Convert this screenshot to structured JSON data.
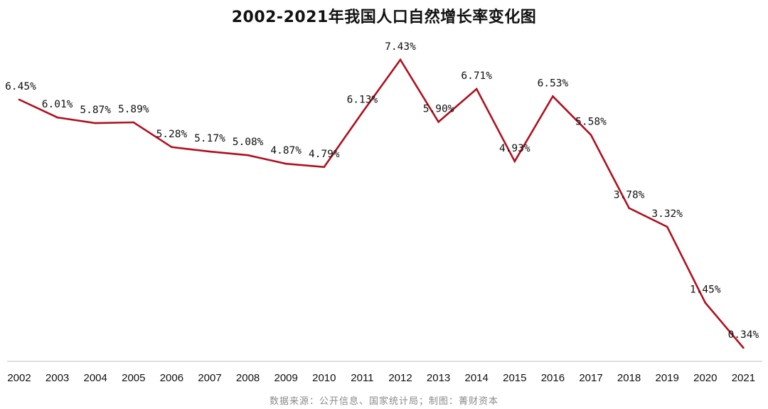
{
  "title": "2002-2021年我国人口自然增长率变化图",
  "source": "数据来源：公开信息、国家统计局；制图：菁财资本",
  "colors": {
    "line": "#b0101e",
    "axis": "#bfbfbf",
    "text": "#111111",
    "source_text": "#8a8a8a"
  },
  "chart_data": {
    "type": "line",
    "title": "2002-2021年我国人口自然增长率变化图",
    "xlabel": "",
    "ylabel": "",
    "categories": [
      "2002",
      "2003",
      "2004",
      "2005",
      "2006",
      "2007",
      "2008",
      "2009",
      "2010",
      "2011",
      "2012",
      "2013",
      "2014",
      "2015",
      "2016",
      "2017",
      "2018",
      "2019",
      "2020",
      "2021"
    ],
    "series": [
      {
        "values": [
          6.45,
          6.01,
          5.87,
          5.89,
          5.28,
          5.17,
          5.08,
          4.87,
          4.79,
          6.13,
          7.43,
          5.9,
          6.71,
          4.93,
          6.53,
          5.58,
          3.78,
          3.32,
          1.45,
          0.34
        ],
        "data_labels": [
          "6.45%",
          "6.01%",
          "5.87%",
          "5.89%",
          "5.28%",
          "5.17%",
          "5.08%",
          "4.87%",
          "4.79%",
          "6.13%",
          "7.43%",
          "5.90%",
          "6.71%",
          "4.93%",
          "6.53%",
          "5.58%",
          "3.78%",
          "3.32%",
          "1.45%",
          "0.34%"
        ]
      }
    ],
    "ylim": [
      0,
      8
    ],
    "grid": false,
    "y_axis_visible": false,
    "legend": "none"
  }
}
